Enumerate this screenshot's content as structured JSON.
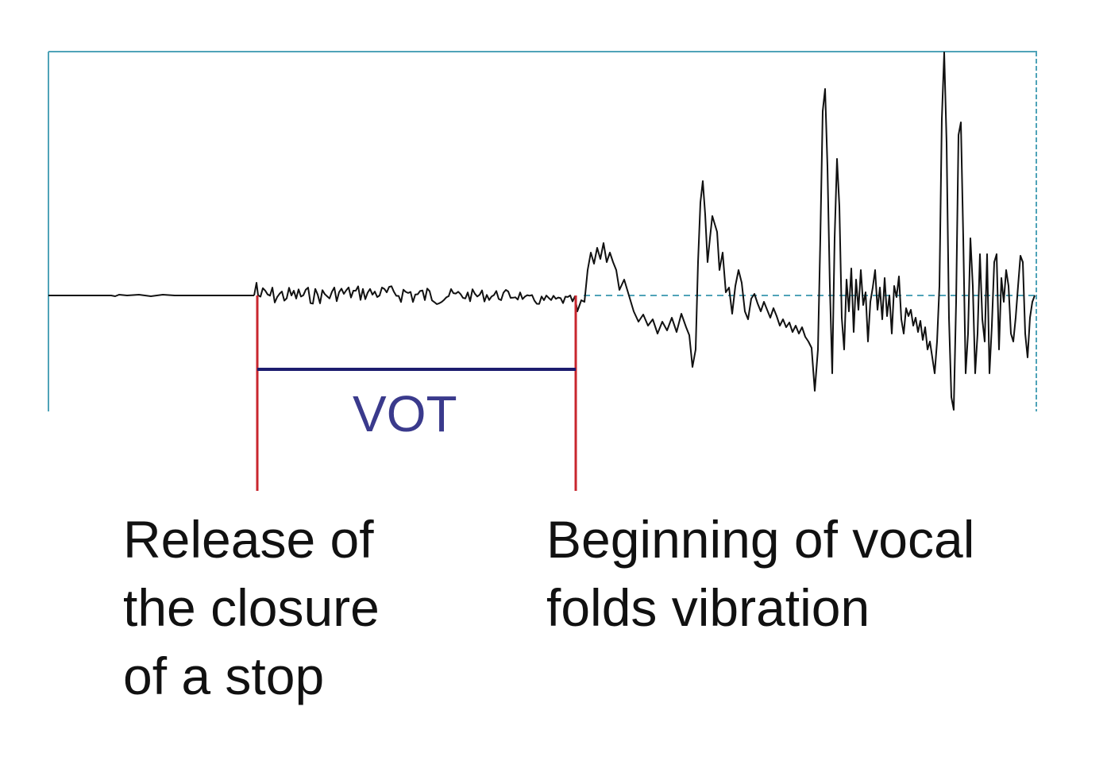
{
  "diagram": {
    "vot_label": "VOT",
    "release_caption": [
      "Release of",
      "the closure",
      "of a stop"
    ],
    "voicing_caption": [
      "Beginning of vocal",
      "folds vibration"
    ]
  },
  "colors": {
    "frame": "#4fa3b8",
    "baseline_dashed": "#4fa3b8",
    "waveform": "#111111",
    "marker": "#c8262e",
    "vot_bar": "#1c1c6e",
    "vot_text": "#3a3a8c",
    "caption_text": "#111111"
  }
}
